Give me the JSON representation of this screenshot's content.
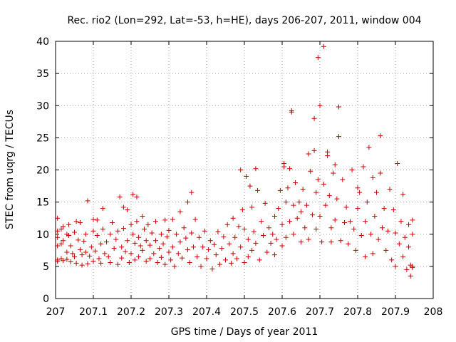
{
  "chart_data": {
    "type": "scatter",
    "title": "Rec. rio2 (Lon=292, Lat=-53, h=HE), days 206-207, 2011, window 004",
    "xlabel": "GPS time / Days of year 2011",
    "ylabel": "STEC from uqrg / TECUs",
    "xlim": [
      207,
      208
    ],
    "ylim": [
      0,
      40
    ],
    "xticks": [
      "207",
      "207.1",
      "207.2",
      "207.3",
      "207.4",
      "207.5",
      "207.6",
      "207.7",
      "207.8",
      "207.9",
      "208"
    ],
    "yticks": [
      "0",
      "5",
      "10",
      "15",
      "20",
      "25",
      "30",
      "35",
      "40"
    ],
    "grid": true,
    "marker": "plus",
    "color": "#cc0000",
    "series": [
      {
        "points": [
          [
            207.005,
            12.5
          ],
          [
            207.005,
            10.5
          ],
          [
            207.005,
            9.5
          ],
          [
            207.005,
            8.2
          ],
          [
            207.005,
            6.0
          ],
          [
            207.005,
            5.8
          ],
          [
            207.015,
            10.8
          ],
          [
            207.015,
            8.5
          ],
          [
            207.015,
            6.2
          ],
          [
            207.02,
            11.2
          ],
          [
            207.02,
            9.0
          ],
          [
            207.02,
            5.9
          ],
          [
            207.03,
            10.0
          ],
          [
            207.03,
            7.2
          ],
          [
            207.03,
            6.1
          ],
          [
            207.035,
            11.5
          ],
          [
            207.035,
            9.8
          ],
          [
            207.04,
            8.2
          ],
          [
            207.04,
            5.7
          ],
          [
            207.045,
            7.0
          ],
          [
            207.05,
            10.3
          ],
          [
            207.05,
            6.5
          ],
          [
            207.055,
            12.0
          ],
          [
            207.055,
            5.5
          ],
          [
            207.06,
            9.1
          ],
          [
            207.065,
            7.6
          ],
          [
            207.065,
            11.8
          ],
          [
            207.07,
            6.8
          ],
          [
            207.07,
            5.2
          ],
          [
            207.075,
            8.9
          ],
          [
            207.08,
            10.0
          ],
          [
            207.08,
            7.2
          ],
          [
            207.085,
            15.2
          ],
          [
            207.085,
            5.4
          ],
          [
            207.09,
            6.6
          ],
          [
            207.095,
            8.0
          ],
          [
            207.1,
            12.3
          ],
          [
            207.1,
            10.5
          ],
          [
            207.1,
            5.8
          ],
          [
            207.105,
            7.4
          ],
          [
            207.11,
            12.2
          ],
          [
            207.11,
            9.8
          ],
          [
            207.115,
            6.2
          ],
          [
            207.12,
            8.5
          ],
          [
            207.12,
            5.5
          ],
          [
            207.125,
            14.0
          ],
          [
            207.125,
            10.8
          ],
          [
            207.13,
            7.0
          ],
          [
            207.135,
            8.8
          ],
          [
            207.14,
            6.5
          ],
          [
            207.145,
            10.0
          ],
          [
            207.145,
            5.6
          ],
          [
            207.15,
            11.8
          ],
          [
            207.155,
            7.8
          ],
          [
            207.16,
            9.2
          ],
          [
            207.165,
            10.5
          ],
          [
            207.165,
            5.3
          ],
          [
            207.17,
            15.8
          ],
          [
            207.175,
            8.0
          ],
          [
            207.175,
            6.3
          ],
          [
            207.18,
            14.2
          ],
          [
            207.18,
            10.9
          ],
          [
            207.185,
            7.3
          ],
          [
            207.19,
            13.8
          ],
          [
            207.19,
            9.0
          ],
          [
            207.195,
            5.6
          ],
          [
            207.2,
            11.5
          ],
          [
            207.2,
            7.0
          ],
          [
            207.205,
            16.2
          ],
          [
            207.205,
            10.0
          ],
          [
            207.21,
            8.6
          ],
          [
            207.21,
            6.0
          ],
          [
            207.215,
            15.8
          ],
          [
            207.215,
            12.0
          ],
          [
            207.22,
            9.5
          ],
          [
            207.22,
            6.5
          ],
          [
            207.225,
            8.2
          ],
          [
            207.23,
            12.8
          ],
          [
            207.23,
            7.5
          ],
          [
            207.235,
            10.8
          ],
          [
            207.24,
            9.0
          ],
          [
            207.24,
            5.8
          ],
          [
            207.245,
            11.5
          ],
          [
            207.25,
            8.3
          ],
          [
            207.25,
            6.2
          ],
          [
            207.255,
            10.2
          ],
          [
            207.26,
            7.0
          ],
          [
            207.265,
            12.0
          ],
          [
            207.265,
            9.0
          ],
          [
            207.27,
            5.6
          ],
          [
            207.275,
            7.8
          ],
          [
            207.28,
            10.0
          ],
          [
            207.28,
            6.4
          ],
          [
            207.285,
            8.5
          ],
          [
            207.29,
            12.2
          ],
          [
            207.29,
            5.3
          ],
          [
            207.295,
            9.6
          ],
          [
            207.3,
            7.2
          ],
          [
            207.3,
            10.6
          ],
          [
            207.305,
            6.0
          ],
          [
            207.31,
            12.3
          ],
          [
            207.31,
            8.0
          ],
          [
            207.315,
            5.0
          ],
          [
            207.32,
            10.0
          ],
          [
            207.325,
            7.0
          ],
          [
            207.33,
            13.5
          ],
          [
            207.33,
            8.8
          ],
          [
            207.335,
            6.3
          ],
          [
            207.34,
            11.0
          ],
          [
            207.345,
            9.4
          ],
          [
            207.35,
            15.0
          ],
          [
            207.35,
            7.6
          ],
          [
            207.355,
            5.6
          ],
          [
            207.36,
            16.5
          ],
          [
            207.36,
            10.2
          ],
          [
            207.365,
            8.0
          ],
          [
            207.37,
            12.3
          ],
          [
            207.375,
            6.5
          ],
          [
            207.38,
            9.5
          ],
          [
            207.385,
            5.0
          ],
          [
            207.39,
            8.0
          ],
          [
            207.395,
            10.5
          ],
          [
            207.4,
            6.2
          ],
          [
            207.405,
            7.6
          ],
          [
            207.41,
            9.0
          ],
          [
            207.415,
            4.6
          ],
          [
            207.42,
            8.4
          ],
          [
            207.425,
            6.8
          ],
          [
            207.43,
            10.4
          ],
          [
            207.435,
            5.3
          ],
          [
            207.44,
            7.8
          ],
          [
            207.445,
            9.6
          ],
          [
            207.45,
            6.0
          ],
          [
            207.455,
            11.5
          ],
          [
            207.46,
            8.5
          ],
          [
            207.465,
            5.5
          ],
          [
            207.47,
            12.5
          ],
          [
            207.47,
            7.0
          ],
          [
            207.475,
            9.5
          ],
          [
            207.48,
            6.2
          ],
          [
            207.485,
            11.2
          ],
          [
            207.49,
            20.0
          ],
          [
            207.49,
            8.0
          ],
          [
            207.495,
            13.8
          ],
          [
            207.5,
            10.8
          ],
          [
            207.5,
            5.6
          ],
          [
            207.505,
            19.0
          ],
          [
            207.51,
            9.2
          ],
          [
            207.51,
            6.5
          ],
          [
            207.515,
            17.5
          ],
          [
            207.52,
            14.2
          ],
          [
            207.52,
            7.5
          ],
          [
            207.525,
            10.4
          ],
          [
            207.53,
            20.2
          ],
          [
            207.53,
            8.6
          ],
          [
            207.535,
            16.8
          ],
          [
            207.54,
            6.0
          ],
          [
            207.545,
            12.0
          ],
          [
            207.55,
            9.8
          ],
          [
            207.555,
            14.8
          ],
          [
            207.56,
            7.2
          ],
          [
            207.565,
            11.0
          ],
          [
            207.57,
            8.6
          ],
          [
            207.575,
            10.0
          ],
          [
            207.58,
            12.8
          ],
          [
            207.58,
            6.8
          ],
          [
            207.585,
            9.2
          ],
          [
            207.59,
            14.0
          ],
          [
            207.595,
            16.8
          ],
          [
            207.6,
            8.2
          ],
          [
            207.6,
            11.5
          ],
          [
            207.605,
            20.5
          ],
          [
            207.605,
            21.0
          ],
          [
            207.61,
            15.0
          ],
          [
            207.61,
            9.5
          ],
          [
            207.615,
            17.2
          ],
          [
            207.62,
            20.2
          ],
          [
            207.62,
            12.0
          ],
          [
            207.625,
            29.0
          ],
          [
            207.625,
            29.2
          ],
          [
            207.63,
            14.5
          ],
          [
            207.63,
            10.0
          ],
          [
            207.635,
            18.0
          ],
          [
            207.64,
            12.5
          ],
          [
            207.645,
            15.0
          ],
          [
            207.65,
            8.8
          ],
          [
            207.65,
            13.5
          ],
          [
            207.655,
            17.0
          ],
          [
            207.66,
            11.0
          ],
          [
            207.665,
            14.5
          ],
          [
            207.67,
            9.2
          ],
          [
            207.67,
            22.5
          ],
          [
            207.675,
            19.8
          ],
          [
            207.68,
            13.0
          ],
          [
            207.685,
            23.0
          ],
          [
            207.685,
            28.0
          ],
          [
            207.69,
            10.8
          ],
          [
            207.69,
            16.5
          ],
          [
            207.695,
            37.5
          ],
          [
            207.695,
            18.5
          ],
          [
            207.7,
            30.0
          ],
          [
            207.7,
            12.8
          ],
          [
            207.705,
            8.8
          ],
          [
            207.71,
            39.2
          ],
          [
            207.71,
            17.8
          ],
          [
            207.715,
            14.5
          ],
          [
            207.72,
            22.8
          ],
          [
            207.72,
            22.2
          ],
          [
            207.725,
            16.0
          ],
          [
            207.73,
            11.0
          ],
          [
            207.73,
            8.8
          ],
          [
            207.735,
            19.5
          ],
          [
            207.74,
            20.8
          ],
          [
            207.74,
            12.2
          ],
          [
            207.745,
            15.5
          ],
          [
            207.75,
            29.8
          ],
          [
            207.75,
            25.2
          ],
          [
            207.755,
            9.0
          ],
          [
            207.76,
            18.5
          ],
          [
            207.765,
            11.8
          ],
          [
            207.77,
            14.2
          ],
          [
            207.775,
            8.5
          ],
          [
            207.78,
            12.0
          ],
          [
            207.785,
            20.0
          ],
          [
            207.79,
            10.8
          ],
          [
            207.795,
            7.5
          ],
          [
            207.8,
            17.2
          ],
          [
            207.8,
            14.0
          ],
          [
            207.805,
            16.5
          ],
          [
            207.81,
            9.8
          ],
          [
            207.815,
            20.5
          ],
          [
            207.82,
            12.0
          ],
          [
            207.82,
            6.5
          ],
          [
            207.825,
            15.0
          ],
          [
            207.83,
            23.5
          ],
          [
            207.835,
            10.0
          ],
          [
            207.84,
            18.8
          ],
          [
            207.84,
            7.0
          ],
          [
            207.845,
            12.8
          ],
          [
            207.85,
            16.5
          ],
          [
            207.855,
            9.2
          ],
          [
            207.86,
            25.3
          ],
          [
            207.86,
            19.5
          ],
          [
            207.865,
            11.0
          ],
          [
            207.87,
            14.0
          ],
          [
            207.875,
            7.5
          ],
          [
            207.88,
            10.5
          ],
          [
            207.885,
            17.0
          ],
          [
            207.89,
            6.0
          ],
          [
            207.895,
            13.8
          ],
          [
            207.9,
            10.2
          ],
          [
            207.9,
            5.0
          ],
          [
            207.905,
            21.0
          ],
          [
            207.91,
            8.5
          ],
          [
            207.915,
            12.0
          ],
          [
            207.92,
            16.2
          ],
          [
            207.92,
            6.5
          ],
          [
            207.925,
            9.5
          ],
          [
            207.93,
            4.5
          ],
          [
            207.935,
            11.5
          ],
          [
            207.935,
            8.0
          ],
          [
            207.94,
            5.2
          ],
          [
            207.94,
            3.5
          ],
          [
            207.945,
            12.2
          ],
          [
            207.945,
            10.0
          ],
          [
            207.945,
            4.8
          ],
          [
            207.945,
            5.0
          ]
        ]
      }
    ]
  }
}
